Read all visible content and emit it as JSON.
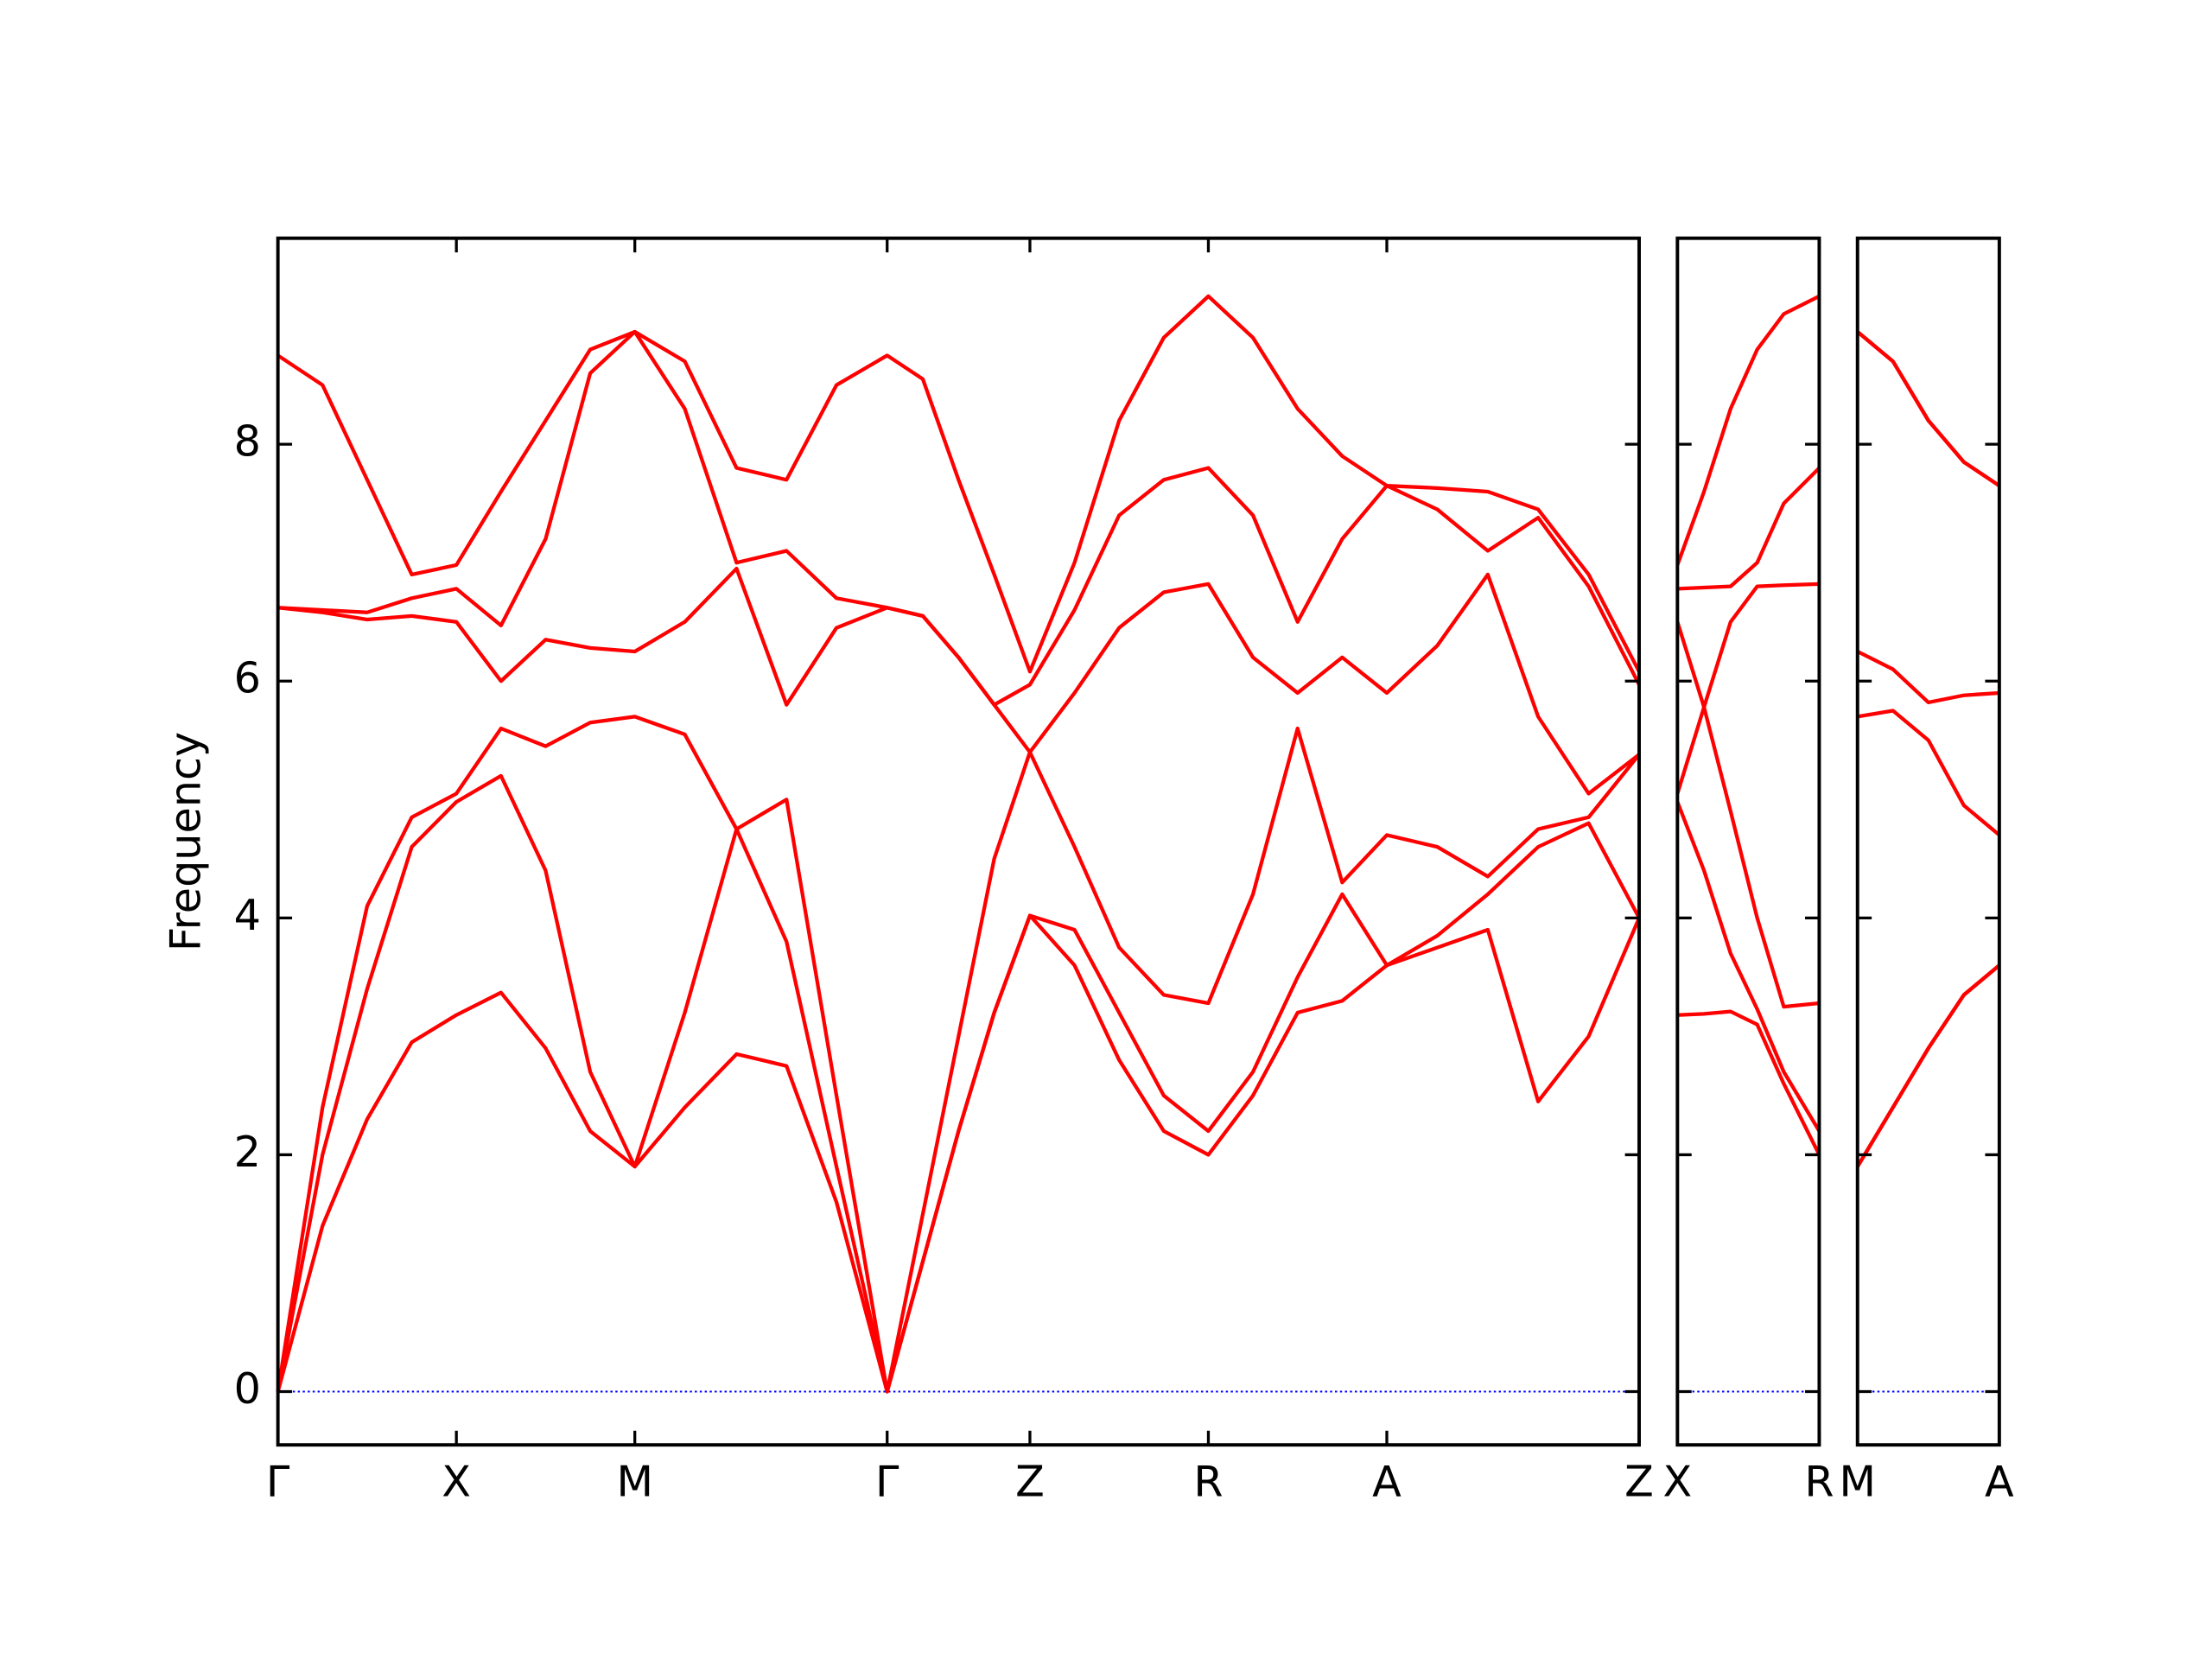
{
  "chart_data": [
    {
      "type": "line",
      "ylabel": "Frequency",
      "x": [
        0,
        0.25,
        0.5,
        0.75,
        1,
        1.25,
        1.5,
        1.75,
        2,
        2.28,
        2.57,
        2.85,
        3.13,
        3.414,
        3.614,
        3.814,
        4.014,
        4.214,
        4.464,
        4.714,
        4.964,
        5.214,
        5.464,
        5.714,
        5.964,
        6.214,
        6.497,
        6.78,
        7.062,
        7.345,
        7.628
      ],
      "series": [
        {
          "color": "#ff0000",
          "values": [
            0,
            1.4,
            2.3,
            2.95,
            3.18,
            3.37,
            2.9,
            2.2,
            1.9,
            2.4,
            2.85,
            2.75,
            1.6,
            0,
            1.1,
            2.2,
            3.2,
            4.02,
            3.6,
            2.8,
            2.2,
            2.0,
            2.5,
            3.2,
            3.3,
            3.6,
            3.75,
            3.9,
            2.45,
            3.0,
            4.0
          ]
        },
        {
          "color": "#ff0000",
          "values": [
            0,
            2.0,
            3.4,
            4.6,
            4.98,
            5.2,
            4.4,
            2.7,
            1.9,
            3.2,
            4.75,
            3.8,
            1.9,
            0,
            1.1,
            2.2,
            3.2,
            4.02,
            3.9,
            3.2,
            2.5,
            2.2,
            2.7,
            3.5,
            4.2,
            3.6,
            3.85,
            4.2,
            4.6,
            4.8,
            4.0
          ]
        },
        {
          "color": "#ff0000",
          "values": [
            0,
            2.4,
            4.1,
            4.85,
            5.05,
            5.6,
            5.45,
            5.65,
            5.7,
            5.55,
            4.75,
            5.0,
            2.5,
            0,
            1.5,
            3.0,
            4.5,
            5.4,
            4.6,
            3.75,
            3.35,
            3.28,
            4.2,
            5.6,
            4.3,
            4.7,
            4.6,
            4.35,
            4.75,
            4.85,
            5.38
          ]
        },
        {
          "color": "#ff0000",
          "values": [
            6.62,
            6.58,
            6.52,
            6.55,
            6.5,
            6.0,
            6.35,
            6.28,
            6.25,
            6.5,
            6.95,
            5.8,
            6.45,
            6.62,
            6.55,
            6.2,
            5.8,
            5.4,
            5.9,
            6.45,
            6.75,
            6.82,
            6.2,
            5.9,
            6.2,
            5.9,
            6.3,
            6.9,
            5.7,
            5.05,
            5.38
          ]
        },
        {
          "color": "#ff0000",
          "values": [
            6.62,
            6.6,
            6.58,
            6.7,
            6.78,
            6.47,
            7.2,
            8.6,
            8.95,
            8.3,
            7.0,
            7.1,
            6.7,
            6.62,
            6.55,
            6.2,
            5.8,
            5.97,
            6.6,
            7.4,
            7.7,
            7.8,
            7.4,
            6.5,
            7.2,
            7.65,
            7.45,
            7.1,
            7.38,
            6.8,
            5.97
          ]
        },
        {
          "color": "#ff0000",
          "values": [
            8.75,
            8.5,
            7.7,
            6.9,
            6.98,
            7.6,
            8.2,
            8.8,
            8.95,
            8.7,
            7.8,
            7.7,
            8.5,
            8.75,
            8.55,
            7.7,
            6.9,
            6.08,
            7.0,
            8.2,
            8.9,
            9.25,
            8.9,
            8.3,
            7.9,
            7.65,
            7.63,
            7.6,
            7.45,
            6.9,
            6.08
          ]
        }
      ],
      "xlim": [
        0,
        7.628
      ],
      "xticks": [
        {
          "value": 0,
          "label": "Γ"
        },
        {
          "value": 1,
          "label": "X"
        },
        {
          "value": 2,
          "label": "M"
        },
        {
          "value": 3.414,
          "label": "Γ"
        },
        {
          "value": 4.214,
          "label": "Z"
        },
        {
          "value": 5.214,
          "label": "R"
        },
        {
          "value": 6.214,
          "label": "A"
        },
        {
          "value": 7.628,
          "label": "Z"
        }
      ],
      "ylim": [
        -0.45,
        9.74
      ],
      "yticks": [
        0,
        2,
        4,
        6,
        8
      ],
      "hline": {
        "value": 0,
        "color": "#0000ff"
      }
    },
    {
      "type": "line",
      "x": [
        0,
        0.15,
        0.3,
        0.45,
        0.6,
        0.8
      ],
      "series": [
        {
          "color": "#ff0000",
          "values": [
            3.18,
            3.19,
            3.21,
            3.1,
            2.6,
            2.0
          ]
        },
        {
          "color": "#ff0000",
          "values": [
            4.98,
            4.4,
            3.7,
            3.23,
            2.7,
            2.2
          ]
        },
        {
          "color": "#ff0000",
          "values": [
            5.05,
            5.78,
            4.9,
            4.0,
            3.25,
            3.28
          ]
        },
        {
          "color": "#ff0000",
          "values": [
            6.5,
            5.78,
            6.5,
            6.8,
            6.81,
            6.82
          ]
        },
        {
          "color": "#ff0000",
          "values": [
            6.78,
            6.79,
            6.8,
            7.0,
            7.5,
            7.8
          ]
        },
        {
          "color": "#ff0000",
          "values": [
            6.98,
            7.6,
            8.3,
            8.8,
            9.1,
            9.25
          ]
        }
      ],
      "xlim": [
        0,
        0.8
      ],
      "xticks": [
        {
          "value": 0,
          "label": "X"
        },
        {
          "value": 0.8,
          "label": "R"
        }
      ],
      "ylim": [
        -0.45,
        9.74
      ],
      "hline": {
        "value": 0,
        "color": "#0000ff"
      }
    },
    {
      "type": "line",
      "x": [
        0,
        0.2,
        0.4,
        0.6,
        0.8
      ],
      "series": [
        {
          "color": "#ff0000",
          "values": [
            1.9,
            2.4,
            2.9,
            3.35,
            3.6
          ]
        },
        {
          "color": "#ff0000",
          "values": [
            1.9,
            2.4,
            2.9,
            3.35,
            3.6
          ]
        },
        {
          "color": "#ff0000",
          "values": [
            5.7,
            5.75,
            5.5,
            4.95,
            4.7
          ]
        },
        {
          "color": "#ff0000",
          "values": [
            6.25,
            6.1,
            5.82,
            5.88,
            5.9
          ]
        },
        {
          "color": "#ff0000",
          "values": [
            8.95,
            8.7,
            8.2,
            7.85,
            7.65
          ]
        },
        {
          "color": "#ff0000",
          "values": [
            8.95,
            8.7,
            8.2,
            7.85,
            7.65
          ]
        }
      ],
      "xlim": [
        0,
        0.8
      ],
      "xticks": [
        {
          "value": 0,
          "label": "M"
        },
        {
          "value": 0.8,
          "label": "A"
        }
      ],
      "ylim": [
        -0.45,
        9.74
      ],
      "hline": {
        "value": 0,
        "color": "#0000ff"
      }
    }
  ]
}
